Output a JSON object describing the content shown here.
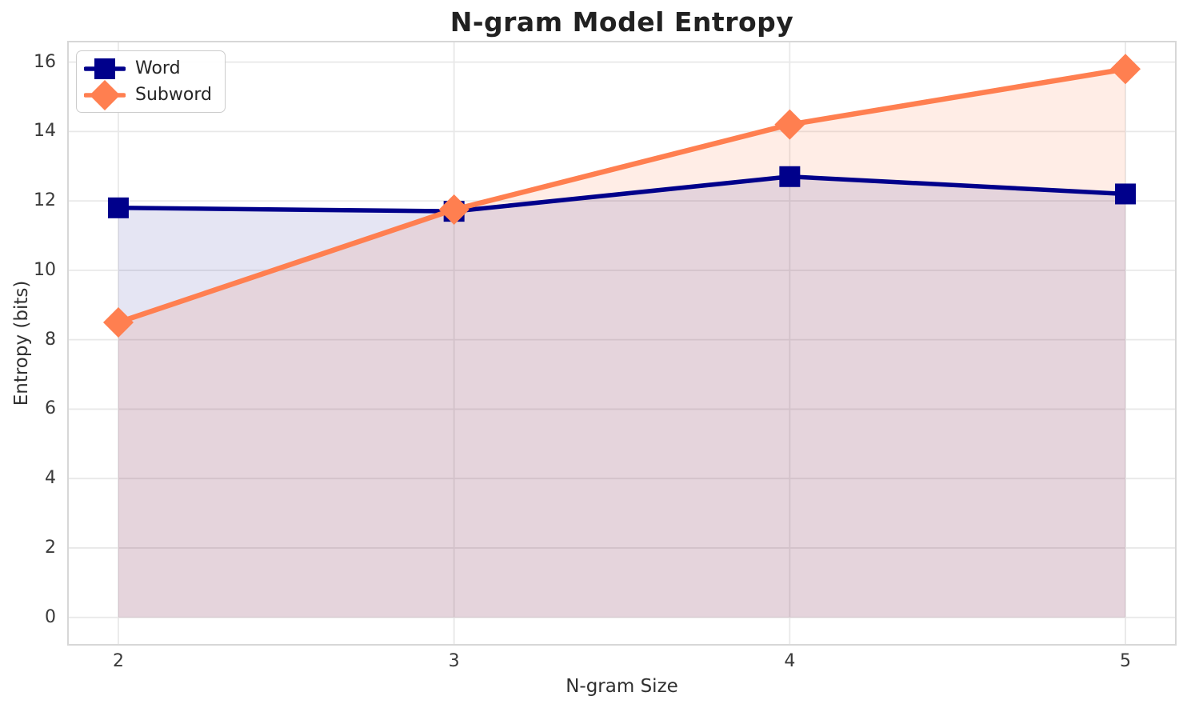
{
  "chart_data": {
    "type": "line",
    "title": "N-gram Model Entropy",
    "xlabel": "N-gram Size",
    "ylabel": "Entropy (bits)",
    "x": [
      2,
      3,
      4,
      5
    ],
    "series": [
      {
        "name": "Word",
        "values": [
          11.8,
          11.7,
          12.7,
          12.2
        ],
        "color": "#00008B",
        "fill": "rgba(0,0,139,0.10)",
        "marker": "square"
      },
      {
        "name": "Subword",
        "values": [
          8.5,
          11.75,
          14.2,
          15.8
        ],
        "color": "#FF7F50",
        "fill": "rgba(255,127,80,0.14)",
        "marker": "diamond"
      }
    ],
    "xticks": [
      2,
      3,
      4,
      5
    ],
    "yticks": [
      0,
      2,
      4,
      6,
      8,
      10,
      12,
      14,
      16
    ],
    "xlim": [
      1.85,
      5.15
    ],
    "ylim": [
      -0.79,
      16.59
    ],
    "grid": true,
    "fill_to_zero": true,
    "legend_position": "upper left",
    "colors": {
      "grid": "#e8e8e8",
      "spine": "#d7d7d7",
      "tick_text": "#3a3a3a",
      "label_text": "#303030",
      "title_text": "#212121"
    }
  }
}
